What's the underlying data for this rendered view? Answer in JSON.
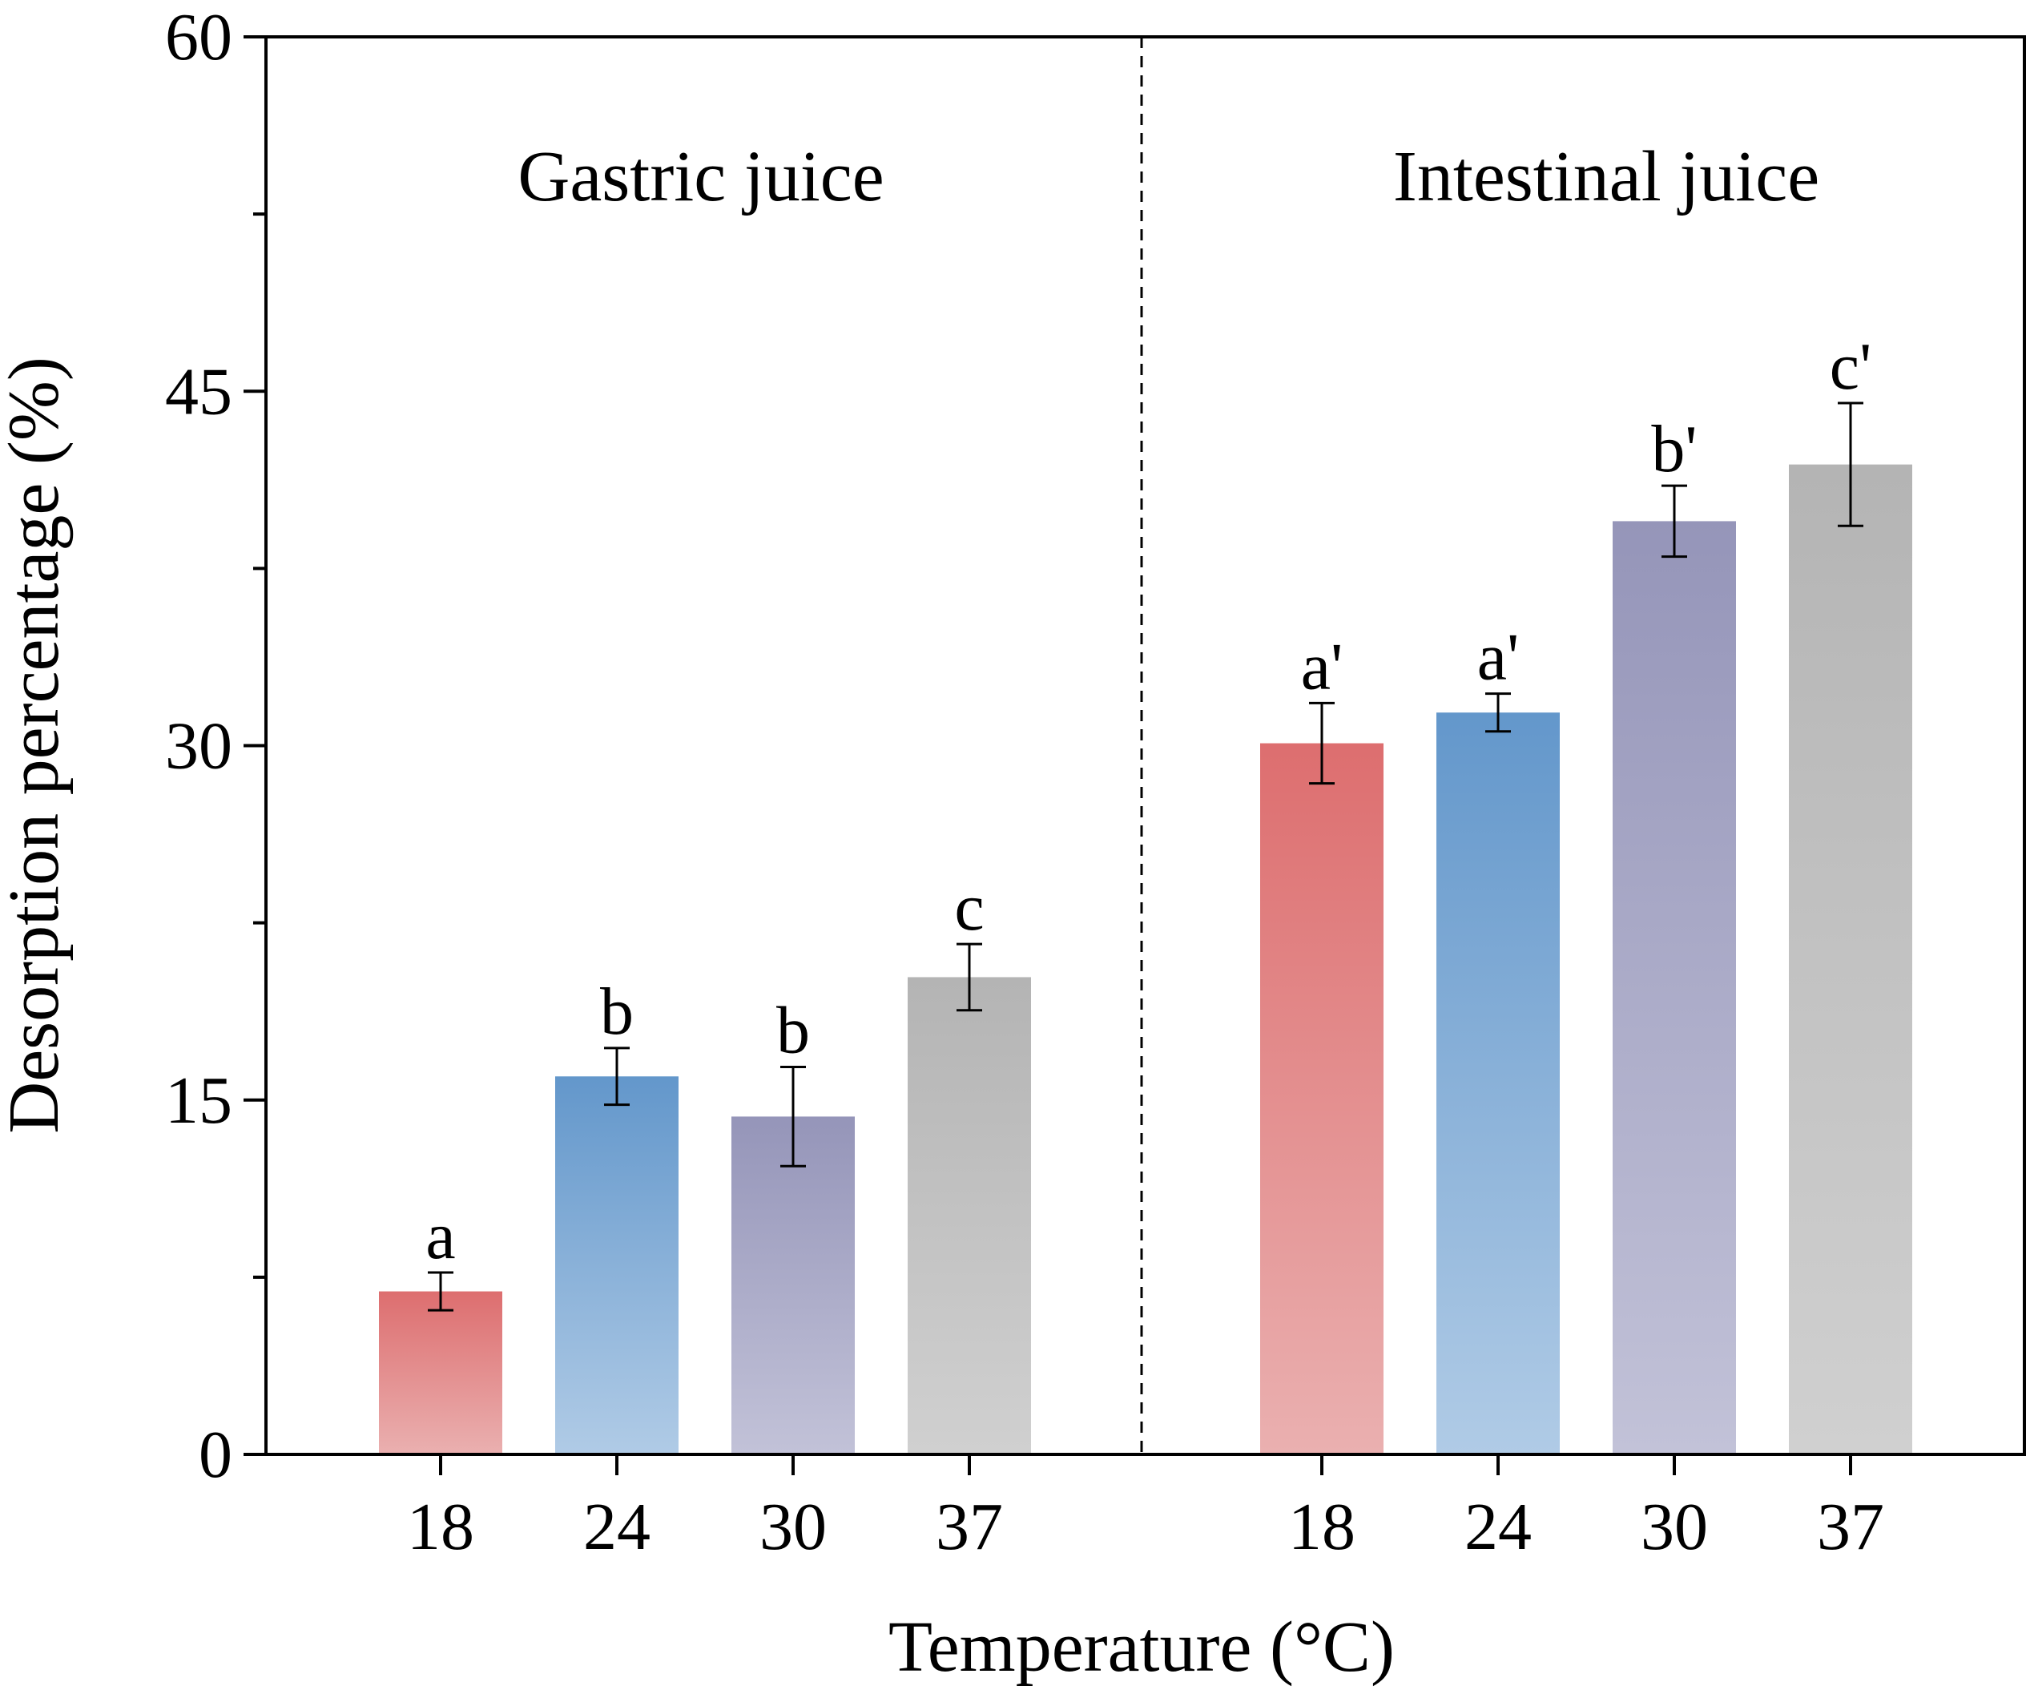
{
  "chart_data": {
    "type": "bar",
    "xlabel": "Temperature (°C)",
    "ylabel": "Desorption percentage (%)",
    "ylim": [
      0,
      60
    ],
    "yticks": [
      "0",
      "15",
      "30",
      "45",
      "60"
    ],
    "yminor_step": 7.5,
    "panel_divider": "dashed",
    "panels": [
      {
        "label": "Gastric juice",
        "categories": [
          "18",
          "24",
          "30",
          "37"
        ],
        "values": [
          6.9,
          16.0,
          14.3,
          20.2
        ],
        "errors": [
          0.8,
          1.2,
          2.1,
          1.4
        ],
        "significance": [
          "a",
          "b",
          "b",
          "c"
        ]
      },
      {
        "label": "Intestinal juice",
        "categories": [
          "18",
          "24",
          "30",
          "37"
        ],
        "values": [
          30.1,
          31.4,
          39.5,
          41.9
        ],
        "errors": [
          1.7,
          0.8,
          1.5,
          2.6
        ],
        "significance": [
          "a'",
          "a'",
          "b'",
          "c'"
        ]
      }
    ],
    "bar_colors": [
      {
        "top": "#dd6e6f",
        "bottom": "#eab0b0"
      },
      {
        "top": "#6397cb",
        "bottom": "#b0cbe6"
      },
      {
        "top": "#9595b9",
        "bottom": "#c2c2d8"
      },
      {
        "top": "#b4b4b4",
        "bottom": "#d0d0d0"
      }
    ]
  }
}
